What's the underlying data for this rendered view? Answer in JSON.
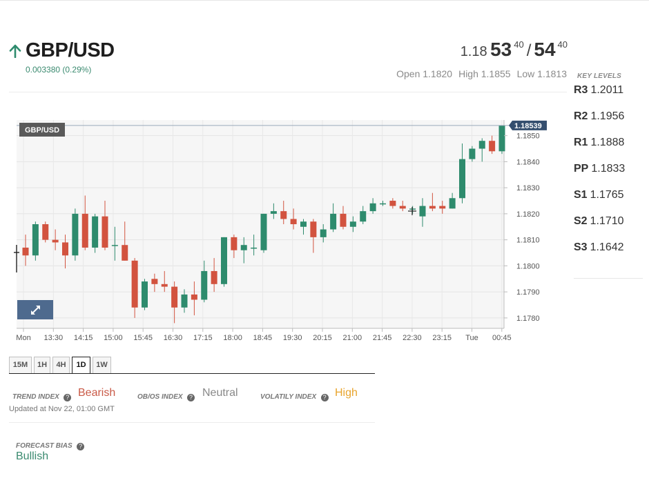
{
  "instrument": {
    "pair": "GBP/USD",
    "direction": "up",
    "change": "0.003380 (0.29%)"
  },
  "quote": {
    "bid_prefix": "1.18",
    "bid_big": "53",
    "bid_pip": "40",
    "ask_big": "54",
    "ask_pip": "40",
    "open": "Open 1.1820",
    "high": "High 1.1855",
    "low": "Low 1.1813"
  },
  "key_levels": {
    "title": "KEY LEVELS",
    "items": [
      {
        "name": "R3",
        "value": "1.2011"
      },
      {
        "name": "R2",
        "value": "1.1956"
      },
      {
        "name": "R1",
        "value": "1.1888"
      },
      {
        "name": "PP",
        "value": "1.1833"
      },
      {
        "name": "S1",
        "value": "1.1765"
      },
      {
        "name": "S2",
        "value": "1.1710"
      },
      {
        "name": "S3",
        "value": "1.1642"
      }
    ]
  },
  "chart": {
    "symbol_tag": "GBP/USD",
    "last_price_tag": "1.18539"
  },
  "timeframes": {
    "items": [
      "15M",
      "1H",
      "4H",
      "1D",
      "1W"
    ],
    "active": "1D"
  },
  "indices": {
    "trend_label": "TREND INDEX",
    "trend_value": "Bearish",
    "obos_label": "OB/OS INDEX",
    "obos_value": "Neutral",
    "volatility_label": "VOLATILY INDEX",
    "volatility_value": "High",
    "updated": "Updated at Nov 22, 01:00 GMT"
  },
  "forecast": {
    "label": "FORECAST BIAS",
    "value": "Bullish"
  },
  "colors": {
    "up": "#2e8b6d",
    "down": "#d2533f",
    "neutral_text": "#888888",
    "high_text": "#e8a42c",
    "bearish_text": "#c95a47",
    "bullish_text": "#3a8a6f",
    "accent_tag": "#344e6e"
  },
  "icons": {
    "direction": "arrow-up-icon",
    "expand": "expand-arrows-icon",
    "help": "question-circle-icon"
  },
  "chart_data": {
    "type": "candlestick",
    "title": "GBP/USD",
    "ylim": [
      1.1776,
      1.1856
    ],
    "y_ticks": [
      "1.1780",
      "1.1790",
      "1.1800",
      "1.1810",
      "1.1820",
      "1.1830",
      "1.1840",
      "1.1850"
    ],
    "x_tick_labels": [
      "Mon",
      "13:30",
      "14:15",
      "15:00",
      "15:45",
      "16:30",
      "17:15",
      "18:00",
      "18:45",
      "19:30",
      "20:15",
      "21:00",
      "21:45",
      "22:30",
      "23:15",
      "Tue",
      "00:45"
    ],
    "grid": true,
    "last_price": 1.18539,
    "candles": [
      {
        "o": 1.1807,
        "h": 1.1812,
        "l": 1.18,
        "c": 1.1804
      },
      {
        "o": 1.1804,
        "h": 1.1817,
        "l": 1.1802,
        "c": 1.1816
      },
      {
        "o": 1.1816,
        "h": 1.1817,
        "l": 1.1809,
        "c": 1.181
      },
      {
        "o": 1.181,
        "h": 1.1814,
        "l": 1.1806,
        "c": 1.1809
      },
      {
        "o": 1.1809,
        "h": 1.1812,
        "l": 1.1799,
        "c": 1.1804
      },
      {
        "o": 1.1804,
        "h": 1.1822,
        "l": 1.1802,
        "c": 1.182
      },
      {
        "o": 1.182,
        "h": 1.1827,
        "l": 1.1806,
        "c": 1.1807
      },
      {
        "o": 1.1807,
        "h": 1.182,
        "l": 1.1805,
        "c": 1.1819
      },
      {
        "o": 1.1819,
        "h": 1.1825,
        "l": 1.1806,
        "c": 1.1807
      },
      {
        "o": 1.1808,
        "h": 1.1815,
        "l": 1.1802,
        "c": 1.1808
      },
      {
        "o": 1.1808,
        "h": 1.1817,
        "l": 1.1802,
        "c": 1.1802
      },
      {
        "o": 1.1802,
        "h": 1.1803,
        "l": 1.178,
        "c": 1.1784
      },
      {
        "o": 1.1784,
        "h": 1.1795,
        "l": 1.1783,
        "c": 1.1794
      },
      {
        "o": 1.1795,
        "h": 1.1797,
        "l": 1.179,
        "c": 1.1793
      },
      {
        "o": 1.1793,
        "h": 1.1798,
        "l": 1.179,
        "c": 1.1792
      },
      {
        "o": 1.1792,
        "h": 1.1794,
        "l": 1.1778,
        "c": 1.1784
      },
      {
        "o": 1.1784,
        "h": 1.1791,
        "l": 1.1782,
        "c": 1.1789
      },
      {
        "o": 1.1789,
        "h": 1.1794,
        "l": 1.1781,
        "c": 1.1787
      },
      {
        "o": 1.1787,
        "h": 1.1802,
        "l": 1.1786,
        "c": 1.1798
      },
      {
        "o": 1.1798,
        "h": 1.1803,
        "l": 1.179,
        "c": 1.1793
      },
      {
        "o": 1.1793,
        "h": 1.1811,
        "l": 1.1792,
        "c": 1.1811
      },
      {
        "o": 1.1811,
        "h": 1.1812,
        "l": 1.1803,
        "c": 1.1806
      },
      {
        "o": 1.1806,
        "h": 1.1811,
        "l": 1.1801,
        "c": 1.1808
      },
      {
        "o": 1.1807,
        "h": 1.1812,
        "l": 1.1804,
        "c": 1.1807
      },
      {
        "o": 1.1806,
        "h": 1.182,
        "l": 1.1805,
        "c": 1.182
      },
      {
        "o": 1.182,
        "h": 1.1824,
        "l": 1.1818,
        "c": 1.1821
      },
      {
        "o": 1.1821,
        "h": 1.1825,
        "l": 1.1816,
        "c": 1.1818
      },
      {
        "o": 1.1818,
        "h": 1.1822,
        "l": 1.1814,
        "c": 1.1816
      },
      {
        "o": 1.1815,
        "h": 1.1818,
        "l": 1.1812,
        "c": 1.1817
      },
      {
        "o": 1.1817,
        "h": 1.1818,
        "l": 1.1805,
        "c": 1.1811
      },
      {
        "o": 1.1811,
        "h": 1.1816,
        "l": 1.1809,
        "c": 1.1814
      },
      {
        "o": 1.1814,
        "h": 1.1824,
        "l": 1.1813,
        "c": 1.182
      },
      {
        "o": 1.182,
        "h": 1.1823,
        "l": 1.1814,
        "c": 1.1815
      },
      {
        "o": 1.1815,
        "h": 1.1819,
        "l": 1.1813,
        "c": 1.1817
      },
      {
        "o": 1.1817,
        "h": 1.1823,
        "l": 1.1816,
        "c": 1.1821
      },
      {
        "o": 1.1821,
        "h": 1.1826,
        "l": 1.182,
        "c": 1.1824
      },
      {
        "o": 1.1824,
        "h": 1.1825,
        "l": 1.1823,
        "c": 1.1824
      },
      {
        "o": 1.1825,
        "h": 1.1826,
        "l": 1.1822,
        "c": 1.1823
      },
      {
        "o": 1.1823,
        "h": 1.1825,
        "l": 1.1821,
        "c": 1.1822
      },
      {
        "o": 1.1822,
        "h": 1.1823,
        "l": 1.182,
        "c": 1.1822
      },
      {
        "o": 1.1819,
        "h": 1.1826,
        "l": 1.1815,
        "c": 1.1823
      },
      {
        "o": 1.1823,
        "h": 1.1828,
        "l": 1.1821,
        "c": 1.1822
      },
      {
        "o": 1.1823,
        "h": 1.1825,
        "l": 1.182,
        "c": 1.1822
      },
      {
        "o": 1.1822,
        "h": 1.1828,
        "l": 1.1822,
        "c": 1.1826
      },
      {
        "o": 1.1826,
        "h": 1.1847,
        "l": 1.1824,
        "c": 1.1841
      },
      {
        "o": 1.1841,
        "h": 1.1846,
        "l": 1.184,
        "c": 1.1845
      },
      {
        "o": 1.1845,
        "h": 1.1849,
        "l": 1.184,
        "c": 1.1848
      },
      {
        "o": 1.1848,
        "h": 1.185,
        "l": 1.1843,
        "c": 1.1844
      },
      {
        "o": 1.1844,
        "h": 1.1854,
        "l": 1.1843,
        "c": 1.1854
      }
    ]
  }
}
